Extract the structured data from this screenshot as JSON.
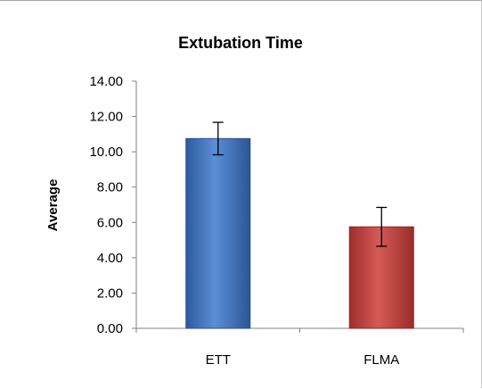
{
  "chart_data": {
    "type": "bar",
    "title": "Extubation Time",
    "xlabel": "",
    "ylabel": "Average",
    "categories": [
      "ETT",
      "FLMA"
    ],
    "values": [
      10.75,
      5.75
    ],
    "error": [
      0.92,
      1.1
    ],
    "ylim": [
      0,
      14
    ],
    "yticks": [
      "0.00",
      "2.00",
      "4.00",
      "6.00",
      "8.00",
      "10.00",
      "12.00",
      "14.00"
    ],
    "ytick_values": [
      0,
      2,
      4,
      6,
      8,
      10,
      12,
      14
    ],
    "grid": false,
    "legend": "none",
    "colors": [
      "#3f6fb5",
      "#c0504d"
    ]
  }
}
